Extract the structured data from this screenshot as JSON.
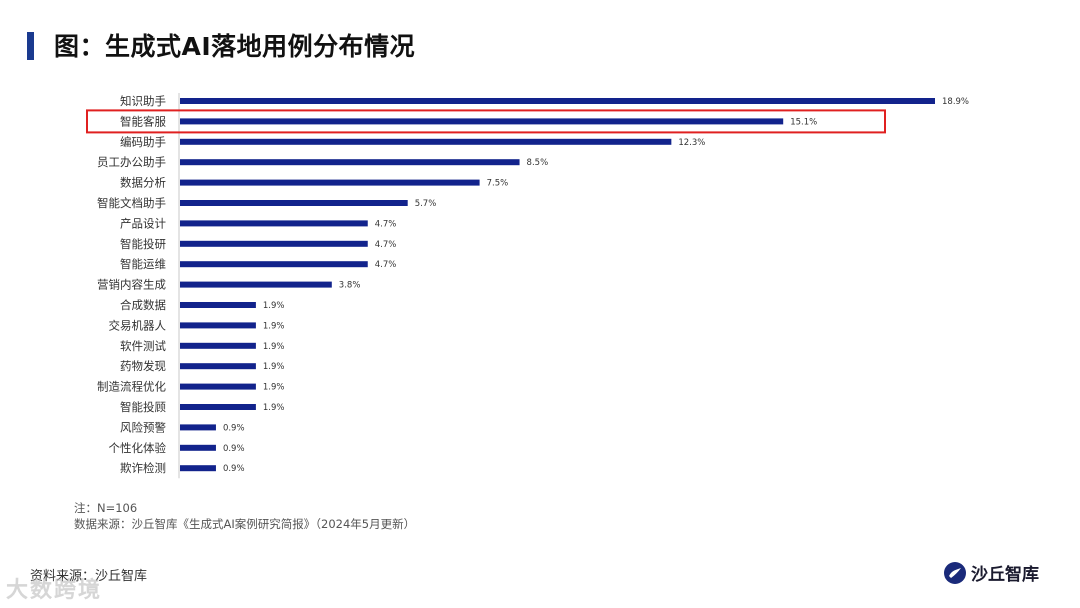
{
  "header": {
    "title": "图：生成式AI落地用例分布情况"
  },
  "chart_data": {
    "type": "bar",
    "orientation": "horizontal",
    "categories": [
      "知识助手",
      "智能客服",
      "编码助手",
      "员工办公助手",
      "数据分析",
      "智能文档助手",
      "产品设计",
      "智能投研",
      "智能运维",
      "营销内容生成",
      "合成数据",
      "交易机器人",
      "软件测试",
      "药物发现",
      "制造流程优化",
      "智能投顾",
      "风险预警",
      "个性化体验",
      "欺诈检测"
    ],
    "values": [
      18.9,
      15.1,
      12.3,
      8.5,
      7.5,
      5.7,
      4.7,
      4.7,
      4.7,
      3.8,
      1.9,
      1.9,
      1.9,
      1.9,
      1.9,
      1.9,
      0.9,
      0.9,
      0.9
    ],
    "value_labels": [
      "18.9%",
      "15.1%",
      "12.3%",
      "8.5%",
      "7.5%",
      "5.7%",
      "4.7%",
      "4.7%",
      "4.7%",
      "3.8%",
      "1.9%",
      "1.9%",
      "1.9%",
      "1.9%",
      "1.9%",
      "1.9%",
      "0.9%",
      "0.9%",
      "0.9%"
    ],
    "highlighted_category": "智能客服",
    "bar_color": "#12238c",
    "highlight_color": "#e02020",
    "xlim": [
      0,
      20
    ]
  },
  "notes": {
    "n_note": "注：N=106",
    "data_source": "数据来源：沙丘智库《生成式AI案例研究简报》（2024年5月更新）"
  },
  "footer": {
    "source": "资料来源：沙丘智库",
    "logo_text": "沙丘智库",
    "watermark": "大数跨境"
  }
}
